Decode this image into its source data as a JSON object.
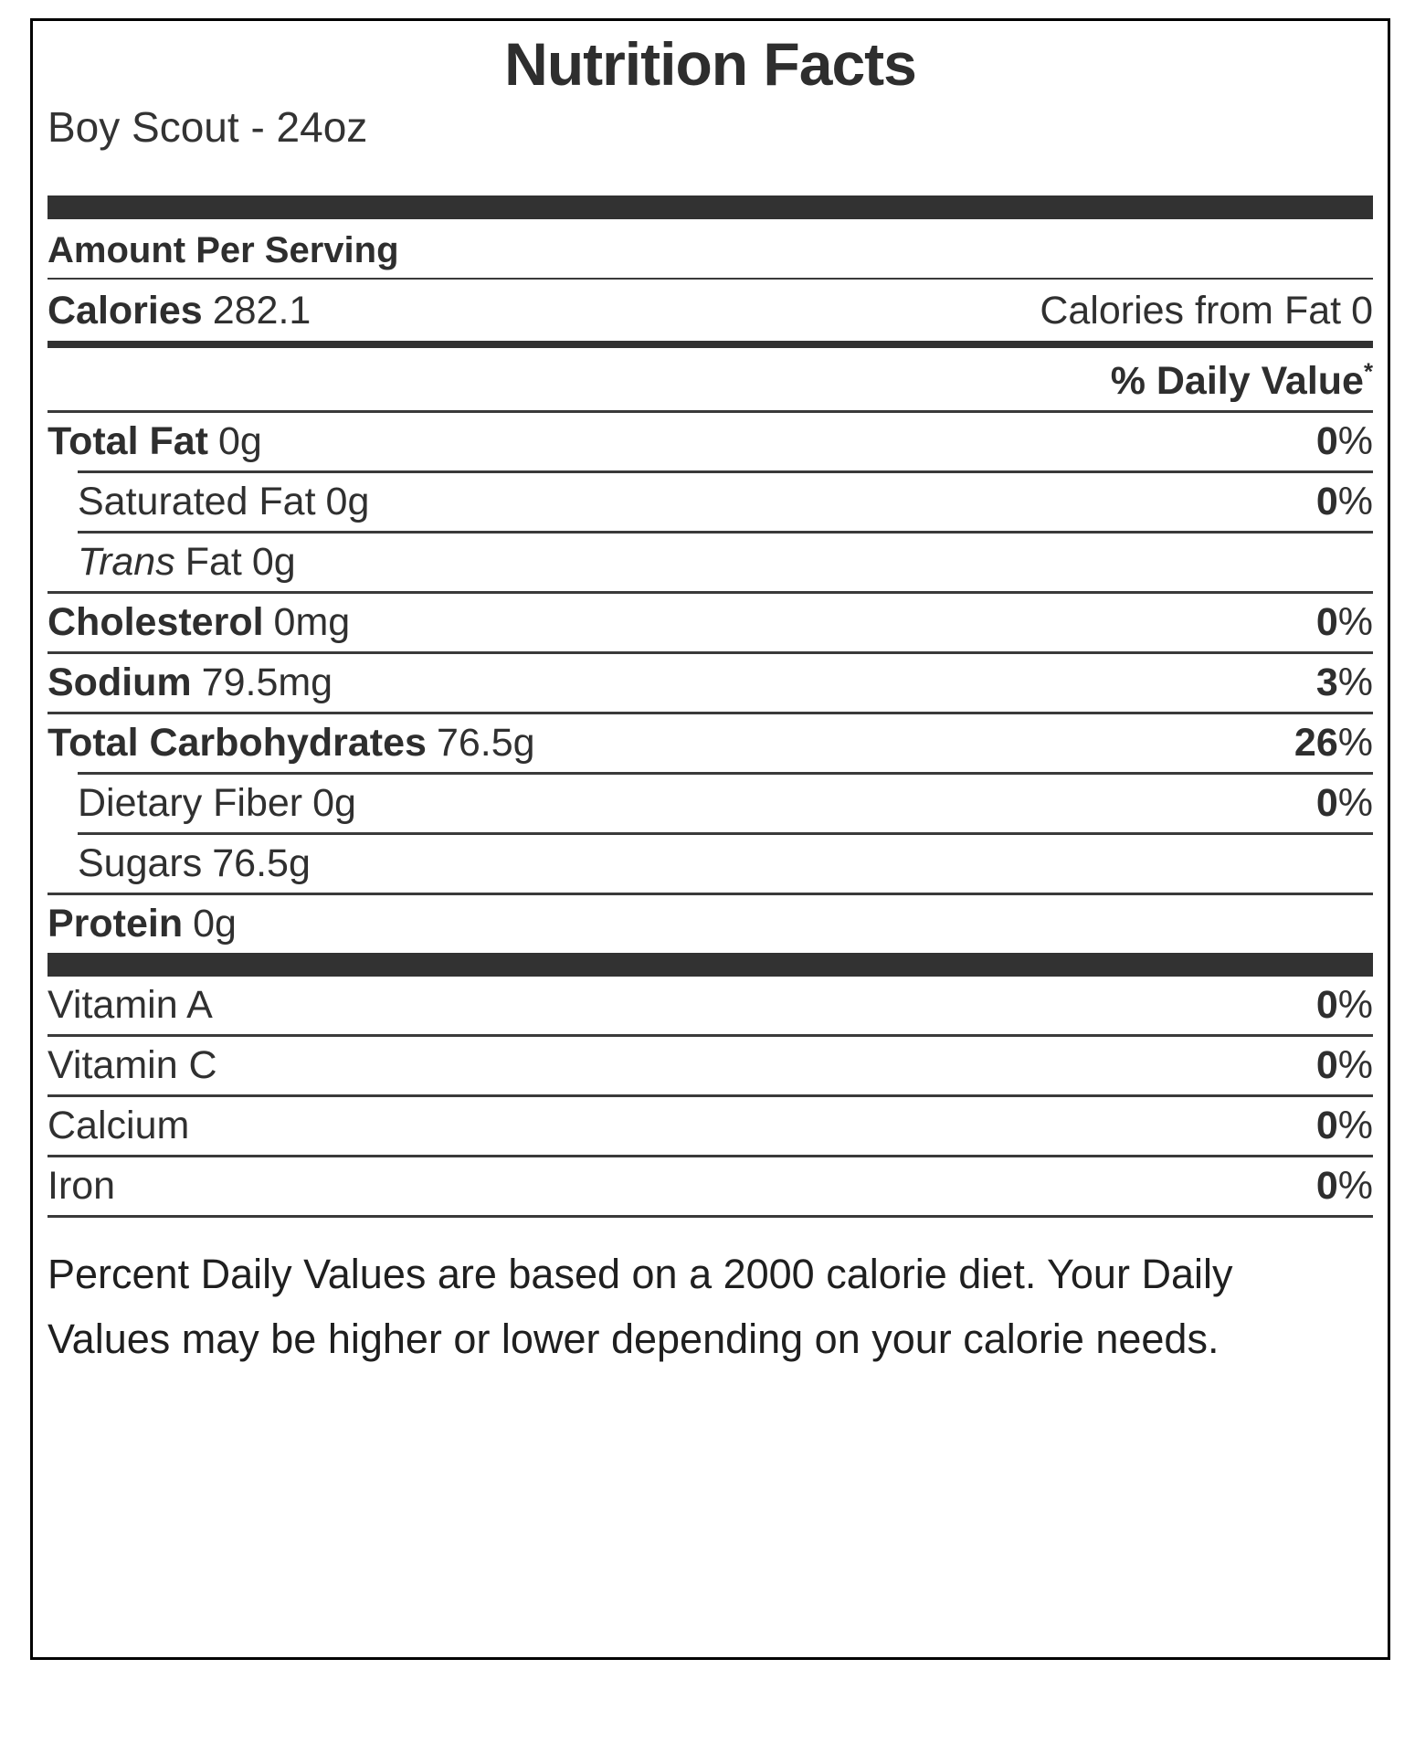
{
  "label": {
    "title": "Nutrition Facts",
    "item_name": "Boy Scout - 24oz",
    "amount_per_serving": "Amount Per Serving",
    "calories": {
      "label": "Calories",
      "value": "282.1"
    },
    "calories_from_fat": {
      "label": "Calories from Fat",
      "value": "0"
    },
    "daily_value_header": {
      "text": "% Daily Value",
      "asterisk": "*"
    },
    "nutrients": [
      {
        "label": "Total Fat",
        "amount": "0g",
        "dv": "0",
        "dv_sign": "%"
      },
      {
        "label": "Saturated Fat",
        "amount": "0g",
        "dv": "0",
        "dv_sign": "%"
      },
      {
        "label_italic": "Trans",
        "label": "Fat",
        "amount": "0g",
        "dv": "",
        "dv_sign": ""
      },
      {
        "label": "Cholesterol",
        "amount": "0mg",
        "dv": "0",
        "dv_sign": "%"
      },
      {
        "label": "Sodium",
        "amount": "79.5mg",
        "dv": "3",
        "dv_sign": "%"
      },
      {
        "label": "Total Carbohydrates",
        "amount": "76.5g",
        "dv": "26",
        "dv_sign": "%"
      },
      {
        "label": "Dietary Fiber",
        "amount": "0g",
        "dv": "0",
        "dv_sign": "%"
      },
      {
        "label": "Sugars",
        "amount": "76.5g",
        "dv": "",
        "dv_sign": ""
      },
      {
        "label": "Protein",
        "amount": "0g",
        "dv": "",
        "dv_sign": ""
      }
    ],
    "vitamins": [
      {
        "label": "Vitamin A",
        "dv": "0",
        "dv_sign": "%"
      },
      {
        "label": "Vitamin C",
        "dv": "0",
        "dv_sign": "%"
      },
      {
        "label": "Calcium",
        "dv": "0",
        "dv_sign": "%"
      },
      {
        "label": "Iron",
        "dv": "0",
        "dv_sign": "%"
      }
    ],
    "footnote": "Percent Daily Values are based on a 2000 calorie diet. Your Daily Values may be higher or lower depending on your calorie needs."
  },
  "colors": {
    "text": "#303030",
    "heading_text": "#2e2e2e",
    "rule": "#3a3a3a",
    "thick_bar": "#323232",
    "border": "#000000",
    "background": "#ffffff"
  }
}
